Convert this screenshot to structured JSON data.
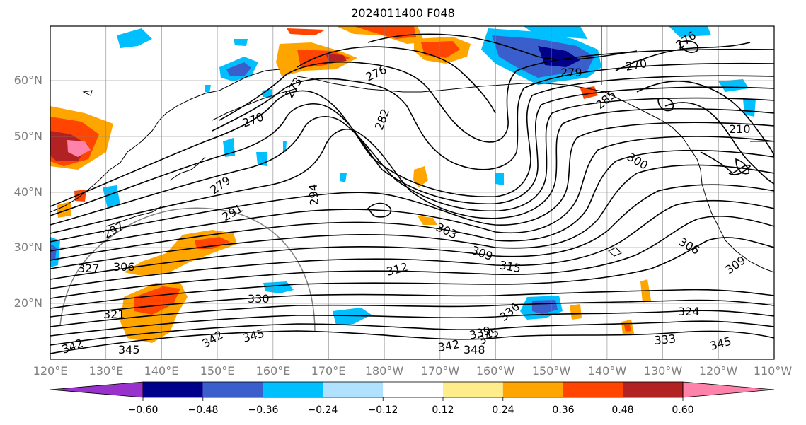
{
  "title": "2024011400 F048",
  "lat_labels": [
    "60°N",
    "50°N",
    "40°N",
    "30°N",
    "20°N"
  ],
  "lon_labels": [
    "120°E",
    "130°E",
    "140°E",
    "150°E",
    "160°E",
    "170°E",
    "180°W",
    "170°W",
    "160°W",
    "150°W",
    "140°W",
    "130°W",
    "120°W",
    "110°W"
  ],
  "colorbar": {
    "tick_labels": [
      "−0.60",
      "−0.48",
      "−0.36",
      "−0.24",
      "−0.12",
      "0.12",
      "0.24",
      "0.36",
      "0.48",
      "0.60"
    ],
    "colors": [
      "#9932cc",
      "#00008b",
      "#3a5fcd",
      "#00bfff",
      "#b0e2ff",
      "#ffffff",
      "#ffec8b",
      "#ffa500",
      "#ff4500",
      "#b22222",
      "#ff82ab"
    ]
  },
  "contour_labels": [
    "270",
    "276",
    "279",
    "279",
    "270",
    "276",
    "282",
    "285",
    "291",
    "294",
    "297",
    "300",
    "303",
    "306",
    "306",
    "309",
    "309",
    "312",
    "315",
    "321",
    "324",
    "327",
    "330",
    "333",
    "336",
    "339",
    "342",
    "342",
    "342",
    "345",
    "345",
    "345",
    "345",
    "348",
    "273",
    "210"
  ]
}
